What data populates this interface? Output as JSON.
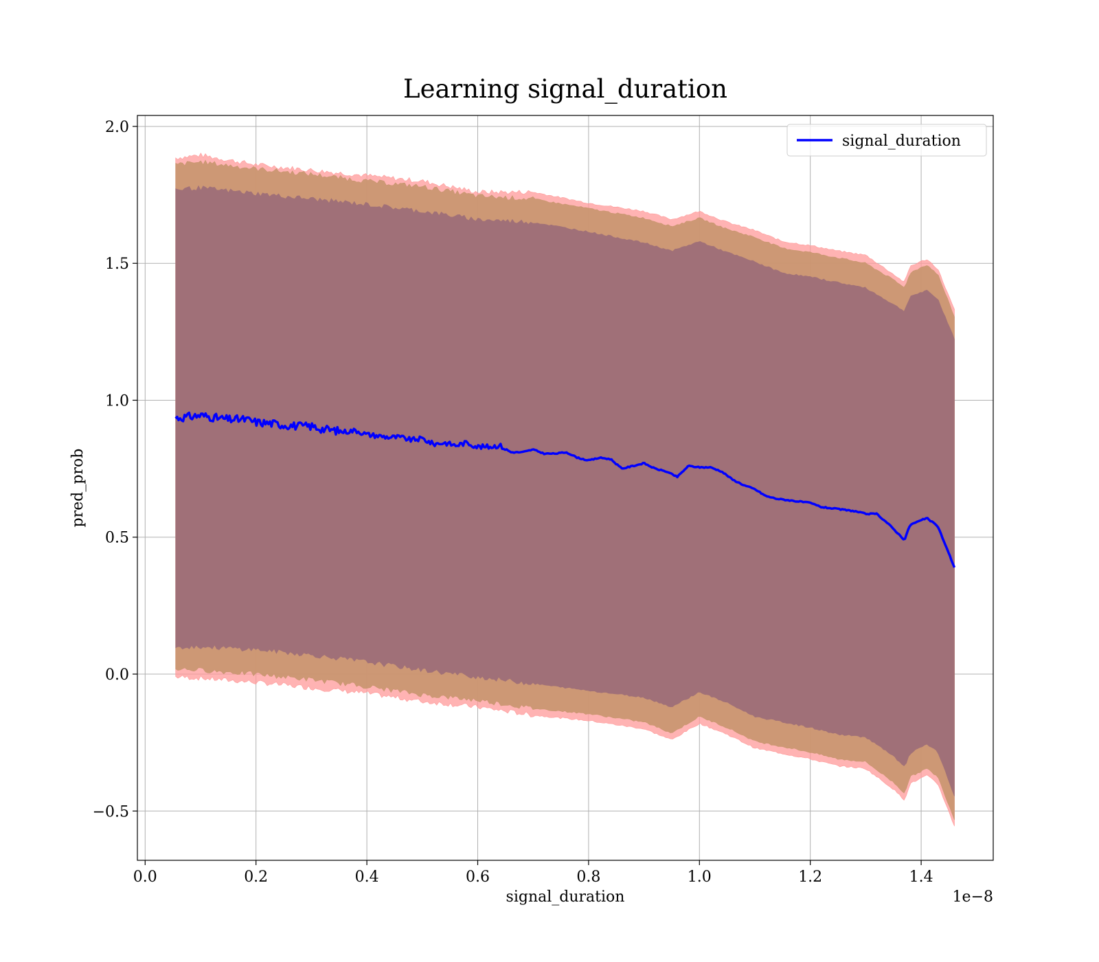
{
  "chart_data": {
    "type": "line",
    "title": "Learning signal_duration",
    "xlabel": "signal_duration",
    "ylabel": "pred_prob",
    "x_offset_label": "1e−8",
    "xlim": [
      -0.014,
      1.53
    ],
    "ylim": [
      -0.68,
      2.04
    ],
    "xticks": [
      0.0,
      0.2,
      0.4,
      0.6,
      0.8,
      1.0,
      1.2,
      1.4
    ],
    "xtick_labels": [
      "0.0",
      "0.2",
      "0.4",
      "0.6",
      "0.8",
      "1.0",
      "1.2",
      "1.4"
    ],
    "yticks": [
      -0.5,
      0.0,
      0.5,
      1.0,
      1.5,
      2.0
    ],
    "ytick_labels": [
      "−0.5",
      "0.0",
      "0.5",
      "1.0",
      "1.5",
      "2.0"
    ],
    "grid": true,
    "legend_position": "top-right",
    "colors": {
      "line": "#0000ff",
      "outer_band": "#ff9999",
      "middle_band": "#c8956e",
      "inner_band": "#a07078"
    },
    "series": [
      {
        "name": "signal_duration",
        "x": [
          0.055,
          0.08,
          0.1,
          0.13,
          0.15,
          0.18,
          0.2,
          0.23,
          0.25,
          0.28,
          0.3,
          0.32,
          0.34,
          0.36,
          0.38,
          0.4,
          0.42,
          0.44,
          0.46,
          0.48,
          0.5,
          0.52,
          0.54,
          0.56,
          0.58,
          0.6,
          0.62,
          0.64,
          0.66,
          0.68,
          0.7,
          0.72,
          0.74,
          0.76,
          0.78,
          0.8,
          0.82,
          0.84,
          0.86,
          0.88,
          0.9,
          0.92,
          0.94,
          0.96,
          0.98,
          1.0,
          1.02,
          1.04,
          1.06,
          1.08,
          1.1,
          1.12,
          1.14,
          1.16,
          1.18,
          1.2,
          1.22,
          1.24,
          1.26,
          1.28,
          1.3,
          1.32,
          1.34,
          1.37,
          1.38,
          1.41,
          1.43,
          1.46
        ],
        "y": [
          0.935,
          0.94,
          0.945,
          0.935,
          0.93,
          0.93,
          0.92,
          0.915,
          0.91,
          0.905,
          0.905,
          0.895,
          0.89,
          0.885,
          0.89,
          0.875,
          0.87,
          0.865,
          0.865,
          0.855,
          0.86,
          0.84,
          0.845,
          0.835,
          0.845,
          0.83,
          0.83,
          0.835,
          0.81,
          0.81,
          0.82,
          0.805,
          0.805,
          0.81,
          0.79,
          0.78,
          0.79,
          0.785,
          0.75,
          0.76,
          0.77,
          0.75,
          0.74,
          0.72,
          0.76,
          0.755,
          0.755,
          0.74,
          0.71,
          0.69,
          0.675,
          0.65,
          0.64,
          0.635,
          0.63,
          0.625,
          0.61,
          0.605,
          0.6,
          0.595,
          0.585,
          0.585,
          0.55,
          0.49,
          0.545,
          0.57,
          0.54,
          0.39
        ]
      }
    ],
    "bands": [
      {
        "role": "outer",
        "x": [
          0.055,
          0.1,
          0.2,
          0.3,
          0.4,
          0.5,
          0.6,
          0.7,
          0.8,
          0.9,
          0.95,
          1.0,
          1.05,
          1.1,
          1.15,
          1.2,
          1.25,
          1.3,
          1.35,
          1.37,
          1.38,
          1.41,
          1.43,
          1.46
        ],
        "upper": [
          1.885,
          1.895,
          1.86,
          1.84,
          1.82,
          1.8,
          1.76,
          1.76,
          1.72,
          1.69,
          1.66,
          1.69,
          1.65,
          1.62,
          1.58,
          1.565,
          1.545,
          1.53,
          1.46,
          1.43,
          1.49,
          1.515,
          1.48,
          1.33
        ],
        "lower": [
          -0.01,
          -0.015,
          -0.03,
          -0.05,
          -0.07,
          -0.1,
          -0.12,
          -0.15,
          -0.17,
          -0.2,
          -0.24,
          -0.18,
          -0.22,
          -0.27,
          -0.29,
          -0.31,
          -0.335,
          -0.345,
          -0.42,
          -0.46,
          -0.4,
          -0.37,
          -0.4,
          -0.555
        ]
      },
      {
        "role": "middle",
        "x": [
          0.055,
          0.1,
          0.2,
          0.3,
          0.4,
          0.5,
          0.6,
          0.7,
          0.8,
          0.9,
          0.95,
          1.0,
          1.05,
          1.1,
          1.15,
          1.2,
          1.25,
          1.3,
          1.35,
          1.37,
          1.38,
          1.41,
          1.43,
          1.46
        ],
        "upper": [
          1.86,
          1.87,
          1.845,
          1.825,
          1.8,
          1.78,
          1.745,
          1.735,
          1.7,
          1.665,
          1.635,
          1.665,
          1.625,
          1.595,
          1.555,
          1.54,
          1.52,
          1.5,
          1.44,
          1.41,
          1.465,
          1.495,
          1.46,
          1.305
        ],
        "lower": [
          0.02,
          0.015,
          0.0,
          -0.02,
          -0.045,
          -0.075,
          -0.095,
          -0.125,
          -0.145,
          -0.175,
          -0.215,
          -0.155,
          -0.195,
          -0.245,
          -0.265,
          -0.285,
          -0.31,
          -0.32,
          -0.395,
          -0.435,
          -0.375,
          -0.345,
          -0.375,
          -0.53
        ]
      },
      {
        "role": "inner",
        "x": [
          0.055,
          0.1,
          0.2,
          0.3,
          0.4,
          0.5,
          0.6,
          0.7,
          0.8,
          0.9,
          0.95,
          1.0,
          1.05,
          1.1,
          1.15,
          1.2,
          1.25,
          1.3,
          1.35,
          1.37,
          1.38,
          1.41,
          1.43,
          1.46
        ],
        "upper": [
          1.77,
          1.775,
          1.755,
          1.735,
          1.715,
          1.69,
          1.66,
          1.65,
          1.615,
          1.575,
          1.545,
          1.58,
          1.54,
          1.505,
          1.465,
          1.45,
          1.43,
          1.41,
          1.35,
          1.325,
          1.38,
          1.4,
          1.37,
          1.225
        ],
        "lower": [
          0.1,
          0.1,
          0.09,
          0.07,
          0.045,
          0.015,
          -0.01,
          -0.035,
          -0.06,
          -0.085,
          -0.12,
          -0.065,
          -0.105,
          -0.155,
          -0.175,
          -0.195,
          -0.22,
          -0.23,
          -0.3,
          -0.34,
          -0.29,
          -0.255,
          -0.285,
          -0.445
        ]
      }
    ]
  }
}
